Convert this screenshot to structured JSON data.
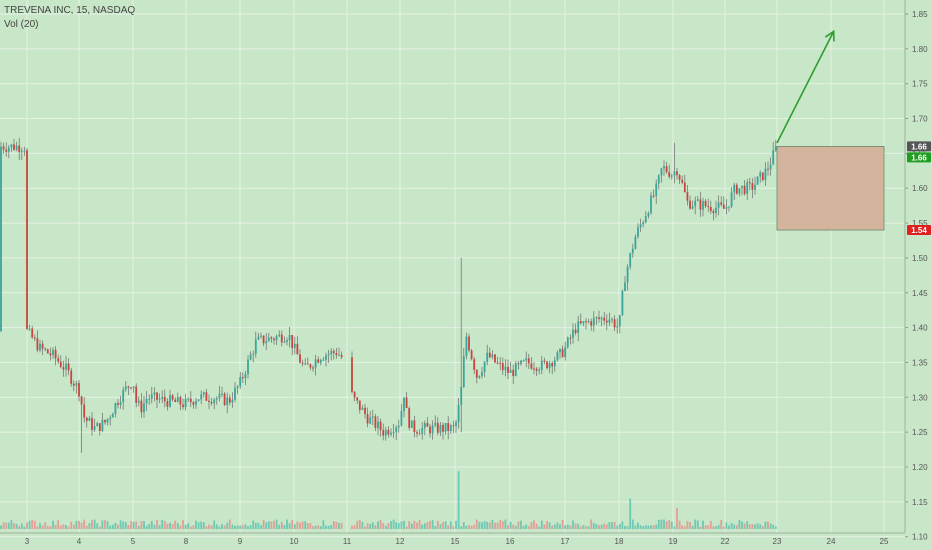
{
  "legend": {
    "symbol": "TREVENA INC, 15, NASDAQ",
    "volume": "Vol (20)"
  },
  "price_badges": [
    {
      "label": "1.66",
      "value": 1.66,
      "color": "#555555"
    },
    {
      "label": "1.66",
      "value": 1.655,
      "color": "#1e9e1e"
    },
    {
      "label": "1.54",
      "value": 1.54,
      "color": "#e02020"
    }
  ],
  "colors": {
    "background": "#c8e6c8",
    "grid": "#e4f2e4",
    "up": "#3aa59a",
    "down": "#c9443f",
    "wick": "#6b6b6b",
    "volume_up": "#5cc4b0",
    "volume_down": "#e6928c",
    "arrow": "#2e9e2e",
    "box_fill": "#d4b49c",
    "box_stroke": "#6a8a6a"
  },
  "chart_data": {
    "type": "candlestick",
    "x_ticks": [
      "3",
      "4",
      "5",
      "8",
      "9",
      "10",
      "11",
      "12",
      "15",
      "16",
      "17",
      "18",
      "19",
      "22",
      "23",
      "24",
      "25"
    ],
    "y_ticks": [
      "1.10",
      "1.15",
      "1.20",
      "1.25",
      "1.30",
      "1.35",
      "1.40",
      "1.45",
      "1.50",
      "1.55",
      "1.60",
      "1.65",
      "1.70",
      "1.75",
      "1.80",
      "1.85"
    ],
    "ylim": [
      1.09,
      1.86
    ],
    "price_path": [
      {
        "x": 3,
        "y": 1.395
      },
      {
        "x": 3.25,
        "y": 1.37
      },
      {
        "x": 3.5,
        "y": 1.36
      },
      {
        "x": 3.75,
        "y": 1.34
      },
      {
        "x": 4,
        "y": 1.31
      },
      {
        "x": 4.1,
        "y": 1.27
      },
      {
        "x": 4.3,
        "y": 1.255
      },
      {
        "x": 4.5,
        "y": 1.265
      },
      {
        "x": 4.75,
        "y": 1.3
      },
      {
        "x": 5,
        "y": 1.325
      },
      {
        "x": 5.2,
        "y": 1.29
      },
      {
        "x": 5.5,
        "y": 1.285
      },
      {
        "x": 5.8,
        "y": 1.3
      },
      {
        "x": 8,
        "y": 1.29
      },
      {
        "x": 8.2,
        "y": 1.3
      },
      {
        "x": 8.5,
        "y": 1.3
      },
      {
        "x": 8.8,
        "y": 1.295
      },
      {
        "x": 9,
        "y": 1.32
      },
      {
        "x": 9.3,
        "y": 1.38
      },
      {
        "x": 9.6,
        "y": 1.385
      },
      {
        "x": 9.9,
        "y": 1.39
      },
      {
        "x": 10,
        "y": 1.37
      },
      {
        "x": 10.2,
        "y": 1.34
      },
      {
        "x": 10.5,
        "y": 1.36
      },
      {
        "x": 10.8,
        "y": 1.365
      },
      {
        "x": 11,
        "y": 1.35
      },
      {
        "x": 11.1,
        "y": 1.3
      },
      {
        "x": 11.4,
        "y": 1.27
      },
      {
        "x": 11.7,
        "y": 1.25
      },
      {
        "x": 12,
        "y": 1.265
      },
      {
        "x": 12.2,
        "y": 1.31
      },
      {
        "x": 12.4,
        "y": 1.27
      },
      {
        "x": 12.7,
        "y": 1.255
      },
      {
        "x": 15,
        "y": 1.255
      },
      {
        "x": 15.1,
        "y": 1.3
      },
      {
        "x": 15.2,
        "y": 1.39
      },
      {
        "x": 15.4,
        "y": 1.33
      },
      {
        "x": 15.6,
        "y": 1.36
      },
      {
        "x": 15.8,
        "y": 1.345
      },
      {
        "x": 16,
        "y": 1.335
      },
      {
        "x": 16.3,
        "y": 1.35
      },
      {
        "x": 16.6,
        "y": 1.345
      },
      {
        "x": 16.9,
        "y": 1.36
      },
      {
        "x": 17,
        "y": 1.37
      },
      {
        "x": 17.2,
        "y": 1.4
      },
      {
        "x": 17.5,
        "y": 1.41
      },
      {
        "x": 17.8,
        "y": 1.415
      },
      {
        "x": 18,
        "y": 1.4
      },
      {
        "x": 18.1,
        "y": 1.47
      },
      {
        "x": 18.3,
        "y": 1.53
      },
      {
        "x": 18.5,
        "y": 1.565
      },
      {
        "x": 18.7,
        "y": 1.6
      },
      {
        "x": 18.8,
        "y": 1.63
      },
      {
        "x": 19,
        "y": 1.62
      },
      {
        "x": 19.2,
        "y": 1.63
      },
      {
        "x": 19.4,
        "y": 1.615
      },
      {
        "x": 19.6,
        "y": 1.6
      },
      {
        "x": 19.8,
        "y": 1.58
      },
      {
        "x": 22,
        "y": 1.57
      },
      {
        "x": 22.2,
        "y": 1.6
      },
      {
        "x": 22.5,
        "y": 1.6
      },
      {
        "x": 22.8,
        "y": 1.625
      },
      {
        "x": 23,
        "y": 1.66
      }
    ],
    "projection_arrow": {
      "from": {
        "x": 23,
        "y": 1.665
      },
      "to": {
        "x": 24.05,
        "y": 1.825
      }
    },
    "target_box": {
      "x_start": 23,
      "x_end": 25,
      "y_top": 1.66,
      "y_bottom": 1.54
    },
    "volume_spikes": [
      {
        "x": 15.08,
        "ratio": 0.72
      },
      {
        "x": 18.2,
        "ratio": 0.38
      },
      {
        "x": 19.3,
        "ratio": 0.26
      },
      {
        "x": 23.02,
        "ratio": 0.3
      }
    ]
  }
}
